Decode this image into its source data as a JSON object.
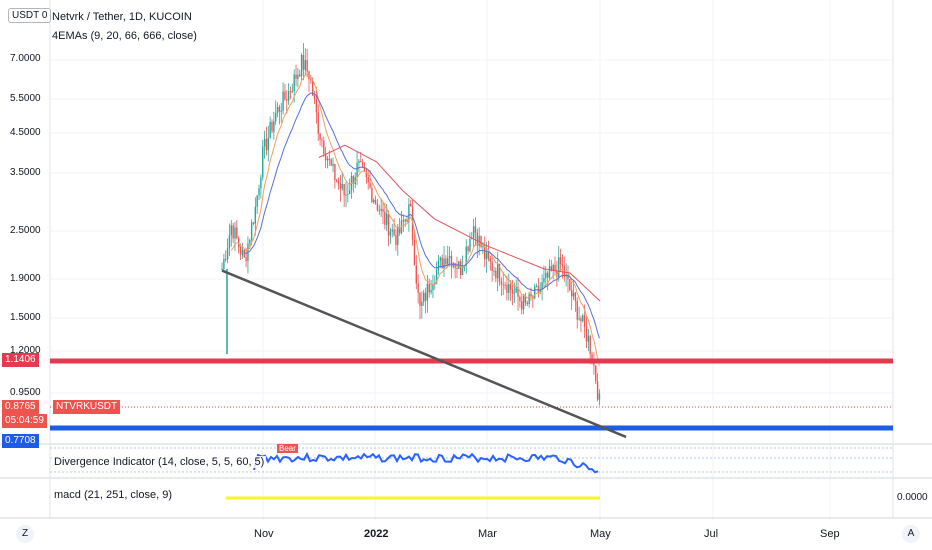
{
  "header": {
    "currency_toggle": "USDT 0",
    "symbol_title": "Netvrk / Tether, 1D, KUCOIN",
    "ema_legend": "4EMAs (9, 20, 66, 666, close)"
  },
  "price_axis": {
    "ticks": [
      "7.0000",
      "5.5000",
      "4.5000",
      "3.5000",
      "2.5000",
      "1.9000",
      "1.5000",
      "1.2000",
      "0.9500"
    ],
    "resistance_label": "1.1406",
    "last_price_label": "0.8765",
    "countdown_label": "05:04:59",
    "support_label": "0.7708",
    "symbol_tag": "NTVRKUSDT"
  },
  "indicators": {
    "divergence_legend": "Divergence Indicator (14, close, 5, 5, 60, 5)",
    "divergence_tag": "Bear",
    "macd_legend": "macd (21, 251, close, 9)",
    "macd_axis_value": "0.0000"
  },
  "time_axis": {
    "ticks": [
      "Nov",
      "2022",
      "Mar",
      "May",
      "Jul",
      "Sep"
    ]
  },
  "buttons": {
    "zoom_left": "Z",
    "auto_right": "A"
  },
  "colors": {
    "resistance": "#e53950",
    "support": "#1e5be6",
    "up_candle": "#26a69a",
    "down_candle": "#ef5350",
    "ema_fast": "#f0a060",
    "ema_mid": "#5b6fd6",
    "ema_slow": "#e05560",
    "trendline": "#555555",
    "divergence_line": "#2962ff",
    "macd_line": "#f5f531"
  },
  "chart_data": {
    "type": "candlestick",
    "scale": "log",
    "symbol": "NTVRK/USDT",
    "interval": "1D",
    "horizontal_levels": [
      {
        "price": 1.1406,
        "color": "red"
      },
      {
        "price": 0.7708,
        "color": "blue"
      }
    ],
    "last_price": 0.8765,
    "close_path": [
      {
        "date": "2021-10-10",
        "close": 2.0
      },
      {
        "date": "2021-10-15",
        "close": 2.6
      },
      {
        "date": "2021-10-22",
        "close": 2.1
      },
      {
        "date": "2021-10-28",
        "close": 2.9
      },
      {
        "date": "2021-11-01",
        "close": 4.0
      },
      {
        "date": "2021-11-08",
        "close": 5.1
      },
      {
        "date": "2021-11-15",
        "close": 5.8
      },
      {
        "date": "2021-11-22",
        "close": 6.9
      },
      {
        "date": "2021-11-26",
        "close": 6.4
      },
      {
        "date": "2021-12-01",
        "close": 4.6
      },
      {
        "date": "2021-12-08",
        "close": 3.6
      },
      {
        "date": "2021-12-15",
        "close": 3.1
      },
      {
        "date": "2021-12-22",
        "close": 3.7
      },
      {
        "date": "2021-12-29",
        "close": 3.2
      },
      {
        "date": "2022-01-05",
        "close": 2.7
      },
      {
        "date": "2022-01-12",
        "close": 2.4
      },
      {
        "date": "2022-01-19",
        "close": 2.9
      },
      {
        "date": "2022-01-24",
        "close": 1.55
      },
      {
        "date": "2022-01-31",
        "close": 1.9
      },
      {
        "date": "2022-02-08",
        "close": 2.2
      },
      {
        "date": "2022-02-15",
        "close": 2.0
      },
      {
        "date": "2022-02-22",
        "close": 2.6
      },
      {
        "date": "2022-03-01",
        "close": 2.1
      },
      {
        "date": "2022-03-08",
        "close": 1.95
      },
      {
        "date": "2022-03-15",
        "close": 1.75
      },
      {
        "date": "2022-03-22",
        "close": 1.6
      },
      {
        "date": "2022-03-29",
        "close": 1.75
      },
      {
        "date": "2022-04-05",
        "close": 1.95
      },
      {
        "date": "2022-04-10",
        "close": 2.05
      },
      {
        "date": "2022-04-15",
        "close": 1.75
      },
      {
        "date": "2022-04-20",
        "close": 1.5
      },
      {
        "date": "2022-04-25",
        "close": 1.3
      },
      {
        "date": "2022-04-28",
        "close": 1.1
      },
      {
        "date": "2022-05-01",
        "close": 0.8765
      }
    ],
    "ema_slow_path": [
      {
        "date": "2021-12-01",
        "value": 3.9
      },
      {
        "date": "2021-12-15",
        "value": 4.2
      },
      {
        "date": "2022-01-01",
        "value": 3.8
      },
      {
        "date": "2022-01-15",
        "value": 3.2
      },
      {
        "date": "2022-02-01",
        "value": 2.7
      },
      {
        "date": "2022-03-01",
        "value": 2.3
      },
      {
        "date": "2022-04-01",
        "value": 2.0
      },
      {
        "date": "2022-04-15",
        "value": 1.95
      },
      {
        "date": "2022-05-01",
        "value": 1.65
      }
    ],
    "trendline": [
      {
        "date": "2021-10-10",
        "price": 1.98
      },
      {
        "date": "2022-05-15",
        "price": 0.73
      }
    ]
  }
}
